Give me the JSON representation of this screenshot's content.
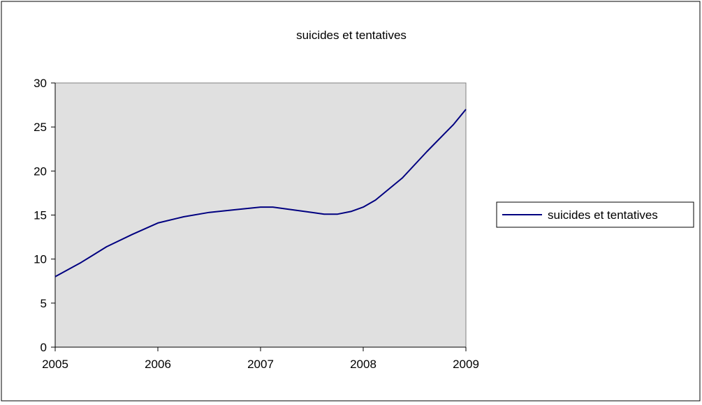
{
  "chart_data": {
    "type": "line",
    "title": "suicides et tentatives",
    "xlabel": "",
    "ylabel": "",
    "x_ticks": [
      "2005",
      "2006",
      "2007",
      "2008",
      "2009"
    ],
    "y_ticks": [
      "0",
      "5",
      "10",
      "15",
      "20",
      "25",
      "30"
    ],
    "xlim": [
      2005,
      2009
    ],
    "ylim": [
      0,
      30
    ],
    "grid": false,
    "legend_position": "right",
    "plot_background": "#e0e0e0",
    "series": [
      {
        "name": "suicides et tentatives",
        "color": "#000080",
        "x": [
          2005.0,
          2005.25,
          2005.5,
          2005.75,
          2006.0,
          2006.25,
          2006.5,
          2006.75,
          2007.0,
          2007.12,
          2007.25,
          2007.5,
          2007.62,
          2007.75,
          2007.88,
          2008.0,
          2008.12,
          2008.38,
          2008.62,
          2008.88,
          2009.0
        ],
        "values": [
          8.0,
          9.6,
          11.4,
          12.8,
          14.1,
          14.8,
          15.3,
          15.6,
          15.9,
          15.9,
          15.7,
          15.3,
          15.1,
          15.1,
          15.4,
          15.9,
          16.7,
          19.2,
          22.2,
          25.3,
          27.0
        ]
      }
    ]
  }
}
